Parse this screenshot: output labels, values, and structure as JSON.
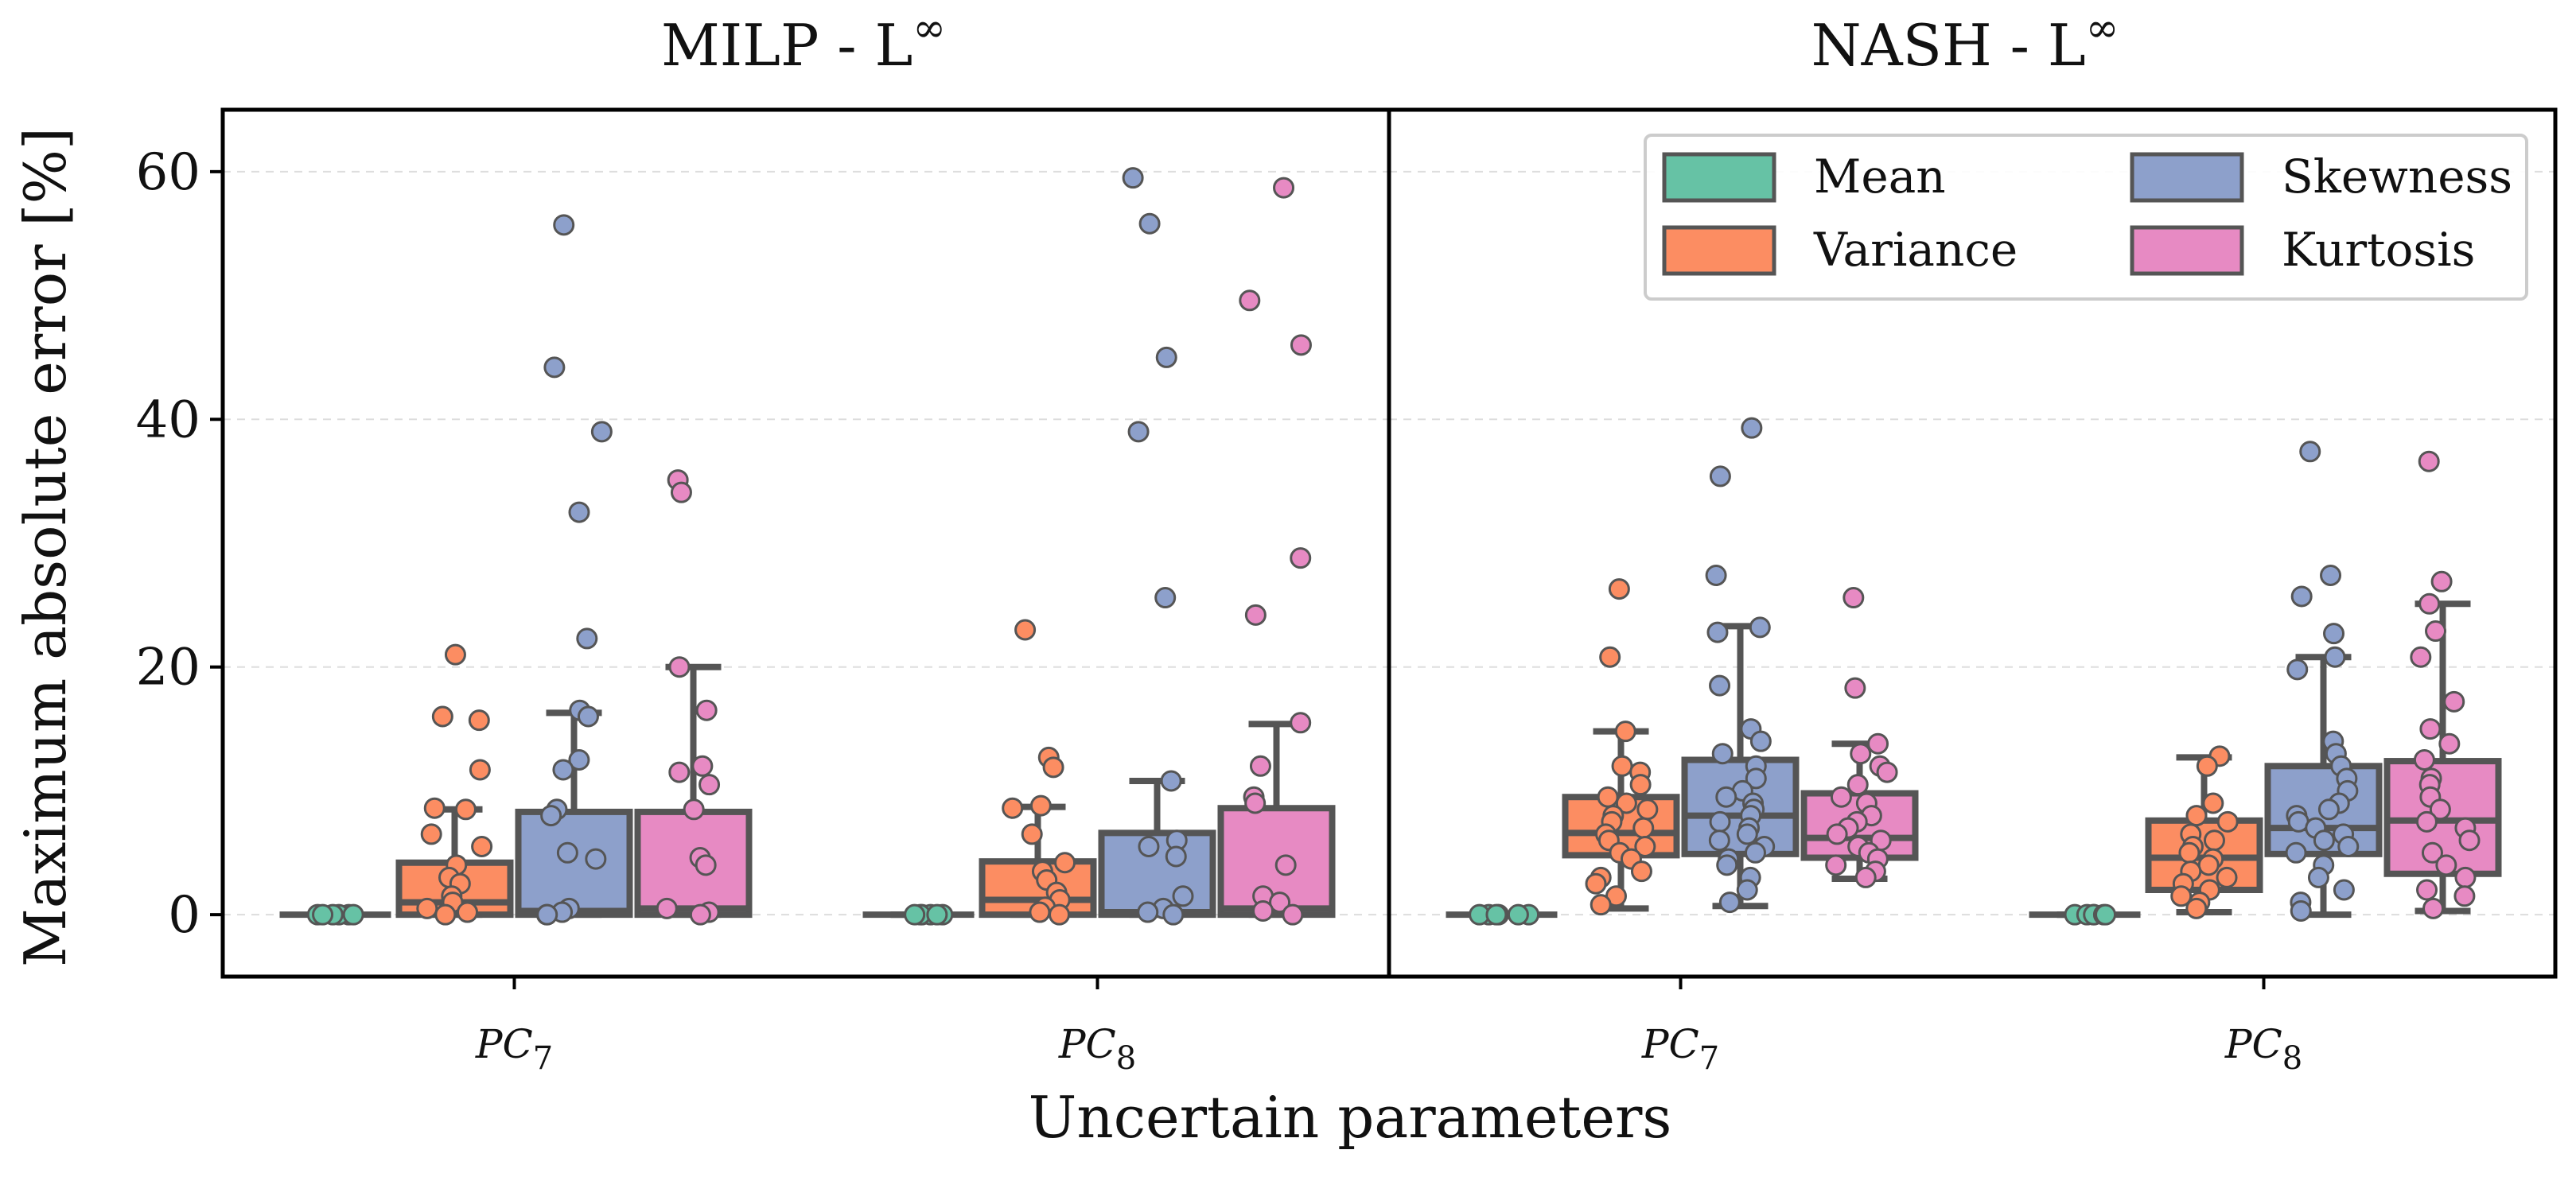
{
  "chart_data": {
    "type": "box",
    "ylabel": "Maximum absolute error [%]",
    "xlabel": "Uncertain parameters",
    "ylim": [
      -5,
      65
    ],
    "yticks": [
      0,
      20,
      40,
      60
    ],
    "grid": "horizontal-dashed",
    "colors": {
      "Mean": "#66c2a5",
      "Variance": "#fc8d62",
      "Skewness": "#8da0cb",
      "Kurtosis": "#e78ac3"
    },
    "legend": {
      "placement": "top-right",
      "entries": [
        "Mean",
        "Variance",
        "Skewness",
        "Kurtosis"
      ]
    },
    "panels": [
      {
        "title": "MILP - L",
        "title_sup": "∞",
        "categories": [
          {
            "base": "PC",
            "sub": "7"
          },
          {
            "base": "PC",
            "sub": "8"
          }
        ],
        "groups": [
          [
            {
              "series": "Mean",
              "q1": 0,
              "median": 0,
              "q3": 0,
              "whislo": 0,
              "whishi": 0,
              "points": [
                0,
                0,
                0,
                0,
                0,
                0
              ]
            },
            {
              "series": "Variance",
              "q1": 0,
              "median": 1,
              "q3": 4.2,
              "whislo": 0,
              "whishi": 8.5,
              "points": [
                21,
                16,
                15.7,
                11.7,
                8.6,
                8.5,
                6.5,
                5.5,
                4,
                3,
                2.5,
                1.5,
                1,
                0.5,
                0.2,
                0
              ]
            },
            {
              "series": "Skewness",
              "q1": 0,
              "median": 0.3,
              "q3": 8.3,
              "whislo": 0,
              "whishi": 16.3,
              "points": [
                55.7,
                44.2,
                39,
                32.5,
                22.3,
                16.5,
                16,
                12.5,
                11.7,
                8.5,
                8,
                5,
                4.5,
                0.5,
                0.2,
                0,
                0
              ]
            },
            {
              "series": "Kurtosis",
              "q1": 0,
              "median": 0.5,
              "q3": 8.3,
              "whislo": 0,
              "whishi": 20,
              "points": [
                35.1,
                34.1,
                20,
                16.5,
                12,
                11.5,
                10.5,
                8.5,
                4.6,
                4,
                0.5,
                0.2,
                0
              ]
            }
          ],
          [
            {
              "series": "Mean",
              "q1": 0,
              "median": 0,
              "q3": 0,
              "whislo": 0,
              "whishi": 0,
              "points": [
                0,
                0,
                0,
                0,
                0,
                0
              ]
            },
            {
              "series": "Variance",
              "q1": 0,
              "median": 1.2,
              "q3": 4.3,
              "whislo": 0,
              "whishi": 8.7,
              "points": [
                23,
                12.7,
                11.9,
                8.8,
                8.6,
                6.5,
                4.2,
                3.5,
                2.8,
                1.8,
                1.2,
                0.6,
                0.2,
                0
              ]
            },
            {
              "series": "Skewness",
              "q1": 0,
              "median": 0.2,
              "q3": 6.6,
              "whislo": 0,
              "whishi": 10.8,
              "points": [
                59.5,
                55.8,
                45,
                39,
                25.6,
                10.8,
                6,
                5.5,
                4.7,
                1.5,
                0.5,
                0.2,
                0
              ]
            },
            {
              "series": "Kurtosis",
              "q1": 0,
              "median": 0.5,
              "q3": 8.6,
              "whislo": 0,
              "whishi": 15.4,
              "points": [
                58.7,
                49.6,
                46,
                28.8,
                24.2,
                15.5,
                12,
                9.5,
                9,
                4,
                1.5,
                1,
                0.3,
                0
              ]
            }
          ]
        ]
      },
      {
        "title": "NASH - L",
        "title_sup": "∞",
        "categories": [
          {
            "base": "PC",
            "sub": "7"
          },
          {
            "base": "PC",
            "sub": "8"
          }
        ],
        "groups": [
          [
            {
              "series": "Mean",
              "q1": 0,
              "median": 0,
              "q3": 0,
              "whislo": 0,
              "whishi": 0,
              "points": [
                0,
                0,
                0,
                0,
                0,
                0
              ]
            },
            {
              "series": "Variance",
              "q1": 4.8,
              "median": 6.6,
              "q3": 9.5,
              "whislo": 0.5,
              "whishi": 14.8,
              "points": [
                26.3,
                20.8,
                14.8,
                12,
                11.5,
                10.5,
                9.5,
                9,
                8.5,
                8,
                7.5,
                7,
                6.5,
                6,
                5.5,
                5,
                4.5,
                3.5,
                3,
                2.5,
                1.5,
                0.8
              ]
            },
            {
              "series": "Skewness",
              "q1": 4.9,
              "median": 8,
              "q3": 12.5,
              "whislo": 0.7,
              "whishi": 23.3,
              "points": [
                39.3,
                35.4,
                27.4,
                23.2,
                22.8,
                18.5,
                15,
                14,
                13,
                12,
                11,
                10,
                9.5,
                9,
                8.5,
                8,
                7.5,
                7,
                6.5,
                6,
                5.5,
                5,
                4.5,
                4,
                3,
                2,
                1
              ]
            },
            {
              "series": "Kurtosis",
              "q1": 4.6,
              "median": 6.2,
              "q3": 9.8,
              "whislo": 2.9,
              "whishi": 13.8,
              "points": [
                25.6,
                18.3,
                13.8,
                13,
                12,
                11.5,
                10.5,
                9.5,
                9,
                8,
                7.5,
                7,
                6.5,
                6,
                5.5,
                5,
                4.5,
                4,
                3.5,
                3
              ]
            }
          ],
          [
            {
              "series": "Mean",
              "q1": 0,
              "median": 0,
              "q3": 0,
              "whislo": 0,
              "whishi": 0,
              "points": [
                0,
                0,
                0,
                0,
                0,
                0
              ]
            },
            {
              "series": "Variance",
              "q1": 2,
              "median": 4.6,
              "q3": 7.6,
              "whislo": 0.2,
              "whishi": 12.7,
              "points": [
                12.8,
                12,
                9,
                8,
                7.5,
                6.5,
                6,
                5.5,
                5,
                4.5,
                4,
                3.5,
                3,
                2.5,
                2,
                1.5,
                1,
                0.5
              ]
            },
            {
              "series": "Skewness",
              "q1": 4.9,
              "median": 7,
              "q3": 12,
              "whislo": 0,
              "whishi": 20.8,
              "points": [
                37.4,
                27.4,
                25.7,
                22.7,
                20.8,
                19.8,
                14,
                13,
                12,
                11,
                10,
                9,
                8.5,
                8,
                7.5,
                7,
                6.5,
                6,
                5.5,
                5,
                4,
                3,
                2,
                1,
                0.3
              ]
            },
            {
              "series": "Kurtosis",
              "q1": 3.3,
              "median": 7.6,
              "q3": 12.4,
              "whislo": 0.3,
              "whishi": 25.1,
              "points": [
                36.6,
                26.9,
                25.1,
                22.9,
                20.8,
                17.2,
                15,
                13.8,
                12.5,
                11,
                10.5,
                9.5,
                8.5,
                7.5,
                7,
                6,
                5,
                4,
                3,
                2,
                1.5,
                0.5
              ]
            }
          ]
        ]
      }
    ]
  }
}
